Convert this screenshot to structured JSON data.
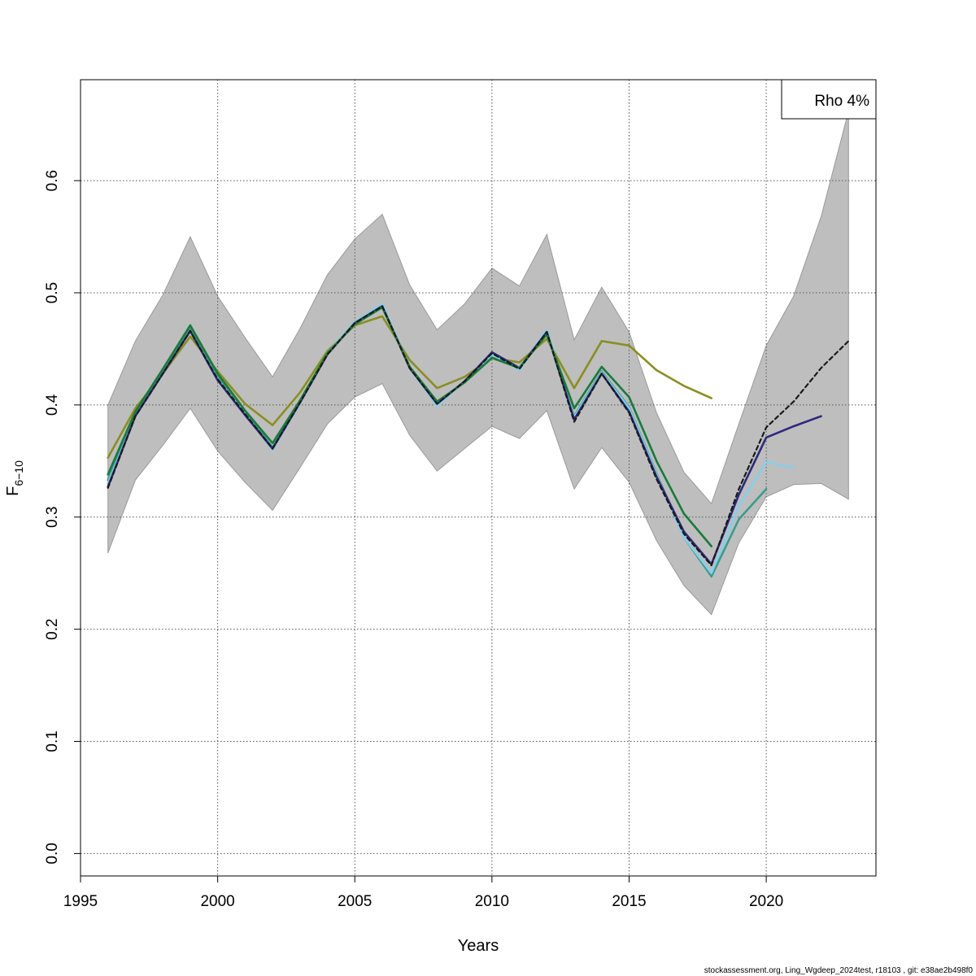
{
  "chart_data": {
    "type": "line",
    "xlabel": "Years",
    "ylabel_main": "F",
    "ylabel_sub": "6−10",
    "xlim": [
      1995,
      2024
    ],
    "ylim": [
      -0.02,
      0.69
    ],
    "xticks": [
      1995,
      2000,
      2005,
      2010,
      2015,
      2020
    ],
    "yticks": [
      0.0,
      0.1,
      0.2,
      0.3,
      0.4,
      0.5,
      0.6
    ],
    "ytick_labels": [
      "0.0",
      "0.1",
      "0.2",
      "0.3",
      "0.4",
      "0.5",
      "0.6"
    ],
    "grid": true,
    "legend": {
      "placement": "top-right",
      "text": "Rho 4%"
    },
    "footer": "stockassessment.org, Ling_Wgdeep_2024test, r18103 , git: e38ae2b498f0",
    "band": {
      "color": "#bebebe",
      "x": [
        1996,
        1997,
        1998,
        1999,
        2000,
        2001,
        2002,
        2003,
        2004,
        2005,
        2006,
        2007,
        2008,
        2009,
        2010,
        2011,
        2012,
        2013,
        2014,
        2015,
        2016,
        2017,
        2018,
        2019,
        2020,
        2021,
        2022,
        2023
      ],
      "upper": [
        0.4,
        0.457,
        0.498,
        0.55,
        0.497,
        0.46,
        0.425,
        0.468,
        0.516,
        0.548,
        0.57,
        0.507,
        0.467,
        0.49,
        0.522,
        0.506,
        0.552,
        0.458,
        0.505,
        0.465,
        0.393,
        0.34,
        0.312,
        0.383,
        0.453,
        0.497,
        0.568,
        0.662
      ],
      "lower": [
        0.268,
        0.333,
        0.364,
        0.397,
        0.359,
        0.331,
        0.306,
        0.344,
        0.383,
        0.407,
        0.419,
        0.373,
        0.341,
        0.361,
        0.381,
        0.37,
        0.395,
        0.325,
        0.362,
        0.331,
        0.279,
        0.239,
        0.213,
        0.277,
        0.318,
        0.329,
        0.33,
        0.316
      ]
    },
    "series": [
      {
        "color": "#8a8e22",
        "dashed": false,
        "x": [
          1996,
          1997,
          1998,
          1999,
          2000,
          2001,
          2002,
          2003,
          2004,
          2005,
          2006,
          2007,
          2008,
          2009,
          2010,
          2011,
          2012,
          2013,
          2014,
          2015,
          2016,
          2017,
          2018
        ],
        "values": [
          0.353,
          0.397,
          0.428,
          0.461,
          0.43,
          0.401,
          0.382,
          0.411,
          0.448,
          0.471,
          0.479,
          0.44,
          0.415,
          0.425,
          0.442,
          0.438,
          0.459,
          0.415,
          0.457,
          0.453,
          0.431,
          0.417,
          0.406
        ]
      },
      {
        "color": "#3a9c8e",
        "dashed": false,
        "x": [
          1996,
          1997,
          1998,
          1999,
          2000,
          2001,
          2002,
          2003,
          2004,
          2005,
          2006,
          2007,
          2008,
          2009,
          2010,
          2011,
          2012,
          2013,
          2014,
          2015,
          2016,
          2017,
          2018,
          2019,
          2020
        ],
        "values": [
          0.333,
          0.392,
          0.43,
          0.468,
          0.425,
          0.394,
          0.362,
          0.403,
          0.446,
          0.474,
          0.489,
          0.434,
          0.401,
          0.421,
          0.445,
          0.432,
          0.466,
          0.39,
          0.43,
          0.398,
          0.339,
          0.282,
          0.247,
          0.298,
          0.325
        ]
      },
      {
        "color": "#87ceeb",
        "dashed": false,
        "x": [
          1996,
          1997,
          1998,
          1999,
          2000,
          2001,
          2002,
          2003,
          2004,
          2005,
          2006,
          2007,
          2008,
          2009,
          2010,
          2011,
          2012,
          2013,
          2014,
          2015,
          2016,
          2017,
          2018,
          2019,
          2020,
          2021
        ],
        "values": [
          0.33,
          0.39,
          0.428,
          0.466,
          0.423,
          0.392,
          0.36,
          0.402,
          0.446,
          0.474,
          0.49,
          0.433,
          0.399,
          0.421,
          0.445,
          0.431,
          0.467,
          0.389,
          0.429,
          0.397,
          0.338,
          0.282,
          0.25,
          0.31,
          0.349,
          0.344
        ]
      },
      {
        "color": "#2c2a7c",
        "dashed": false,
        "x": [
          1996,
          1997,
          1998,
          1999,
          2000,
          2001,
          2002,
          2003,
          2004,
          2005,
          2006,
          2007,
          2008,
          2009,
          2010,
          2011,
          2012,
          2013,
          2014,
          2015,
          2016,
          2017,
          2018,
          2019,
          2020,
          2021,
          2022
        ],
        "values": [
          0.327,
          0.39,
          0.428,
          0.466,
          0.422,
          0.391,
          0.361,
          0.402,
          0.445,
          0.473,
          0.488,
          0.433,
          0.401,
          0.421,
          0.447,
          0.433,
          0.465,
          0.387,
          0.428,
          0.394,
          0.336,
          0.287,
          0.258,
          0.32,
          0.371,
          0.381,
          0.39
        ]
      },
      {
        "color": "#1a7a3a",
        "dashed": false,
        "x": [
          1996,
          1997,
          1998,
          1999,
          2000,
          2001,
          2002,
          2003,
          2004,
          2005,
          2006,
          2007,
          2008,
          2009,
          2010,
          2011,
          2012,
          2013,
          2014,
          2015,
          2016,
          2017,
          2018
        ],
        "values": [
          0.338,
          0.394,
          0.432,
          0.471,
          0.428,
          0.395,
          0.366,
          0.404,
          0.446,
          0.472,
          0.487,
          0.434,
          0.403,
          0.42,
          0.442,
          0.433,
          0.463,
          0.397,
          0.434,
          0.407,
          0.35,
          0.303,
          0.274
        ]
      },
      {
        "color": "#1a1a1a",
        "dashed": true,
        "x": [
          1996,
          1997,
          1998,
          1999,
          2000,
          2001,
          2002,
          2003,
          2004,
          2005,
          2006,
          2007,
          2008,
          2009,
          2010,
          2011,
          2012,
          2013,
          2014,
          2015,
          2016,
          2017,
          2018,
          2019,
          2020,
          2021,
          2022,
          2023
        ],
        "values": [
          0.326,
          0.39,
          0.428,
          0.466,
          0.423,
          0.392,
          0.361,
          0.402,
          0.445,
          0.473,
          0.488,
          0.433,
          0.401,
          0.421,
          0.446,
          0.432,
          0.465,
          0.385,
          0.428,
          0.393,
          0.334,
          0.285,
          0.257,
          0.325,
          0.38,
          0.403,
          0.433,
          0.457
        ]
      }
    ]
  }
}
